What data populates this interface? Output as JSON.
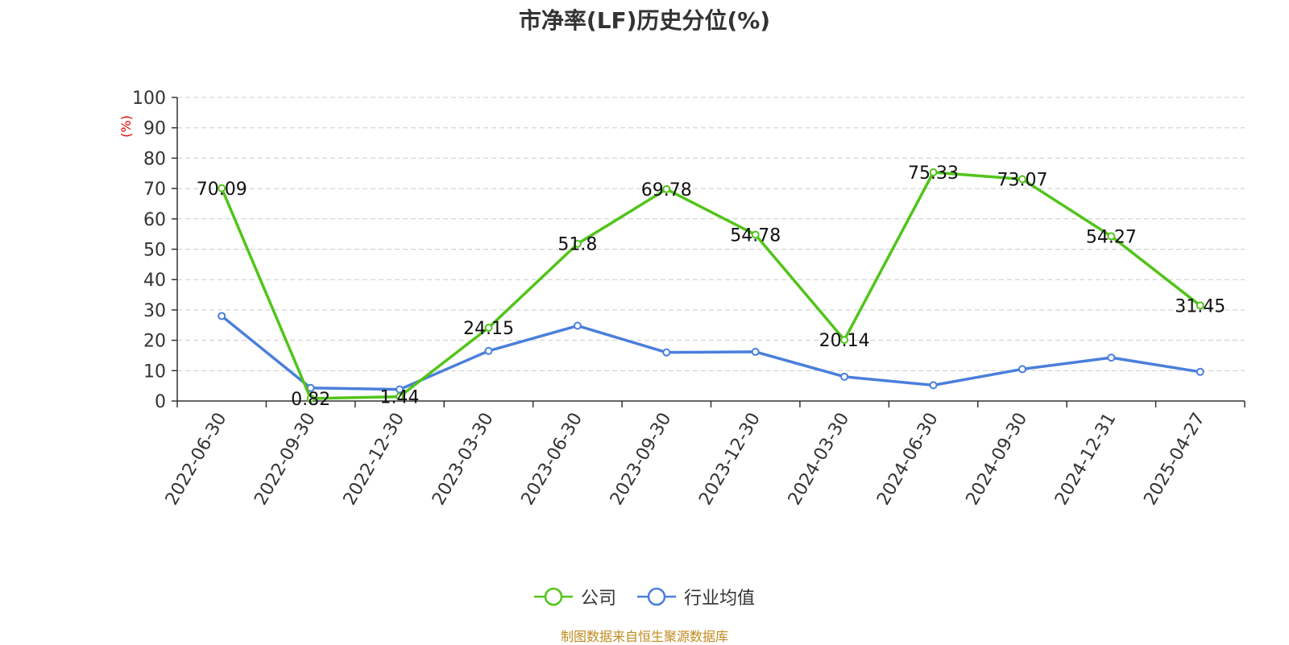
{
  "title": "市净率(LF)历史分位(%)",
  "source": "制图数据来自恒生聚源数据库",
  "chart_data": {
    "type": "line",
    "categories": [
      "2022-06-30",
      "2022-09-30",
      "2022-12-30",
      "2023-03-30",
      "2023-06-30",
      "2023-09-30",
      "2023-12-30",
      "2024-03-30",
      "2024-06-30",
      "2024-09-30",
      "2024-12-31",
      "2025-04-27"
    ],
    "ylabel": "(%)",
    "ylim": [
      0,
      100
    ],
    "yticks": [
      0,
      10,
      20,
      30,
      40,
      50,
      60,
      70,
      80,
      90,
      100
    ],
    "grid": true,
    "legend_position": "bottom-center",
    "series": [
      {
        "name": "公司",
        "color": "#52c41a",
        "show_labels": true,
        "labels": [
          "70.09",
          "0.82",
          "1.44",
          "24.15",
          "51.8",
          "69.78",
          "54.78",
          "20.14",
          "75.33",
          "73.07",
          "54.27",
          "31.45"
        ],
        "values": [
          70.09,
          0.82,
          1.44,
          24.15,
          51.8,
          69.78,
          54.78,
          20.14,
          75.33,
          73.07,
          54.27,
          31.45
        ]
      },
      {
        "name": "行业均值",
        "color": "#4a7fdc",
        "show_labels": false,
        "values": [
          28.0,
          4.3,
          3.8,
          16.5,
          24.8,
          16.0,
          16.2,
          8.0,
          5.2,
          10.5,
          14.3,
          9.6
        ]
      }
    ]
  }
}
